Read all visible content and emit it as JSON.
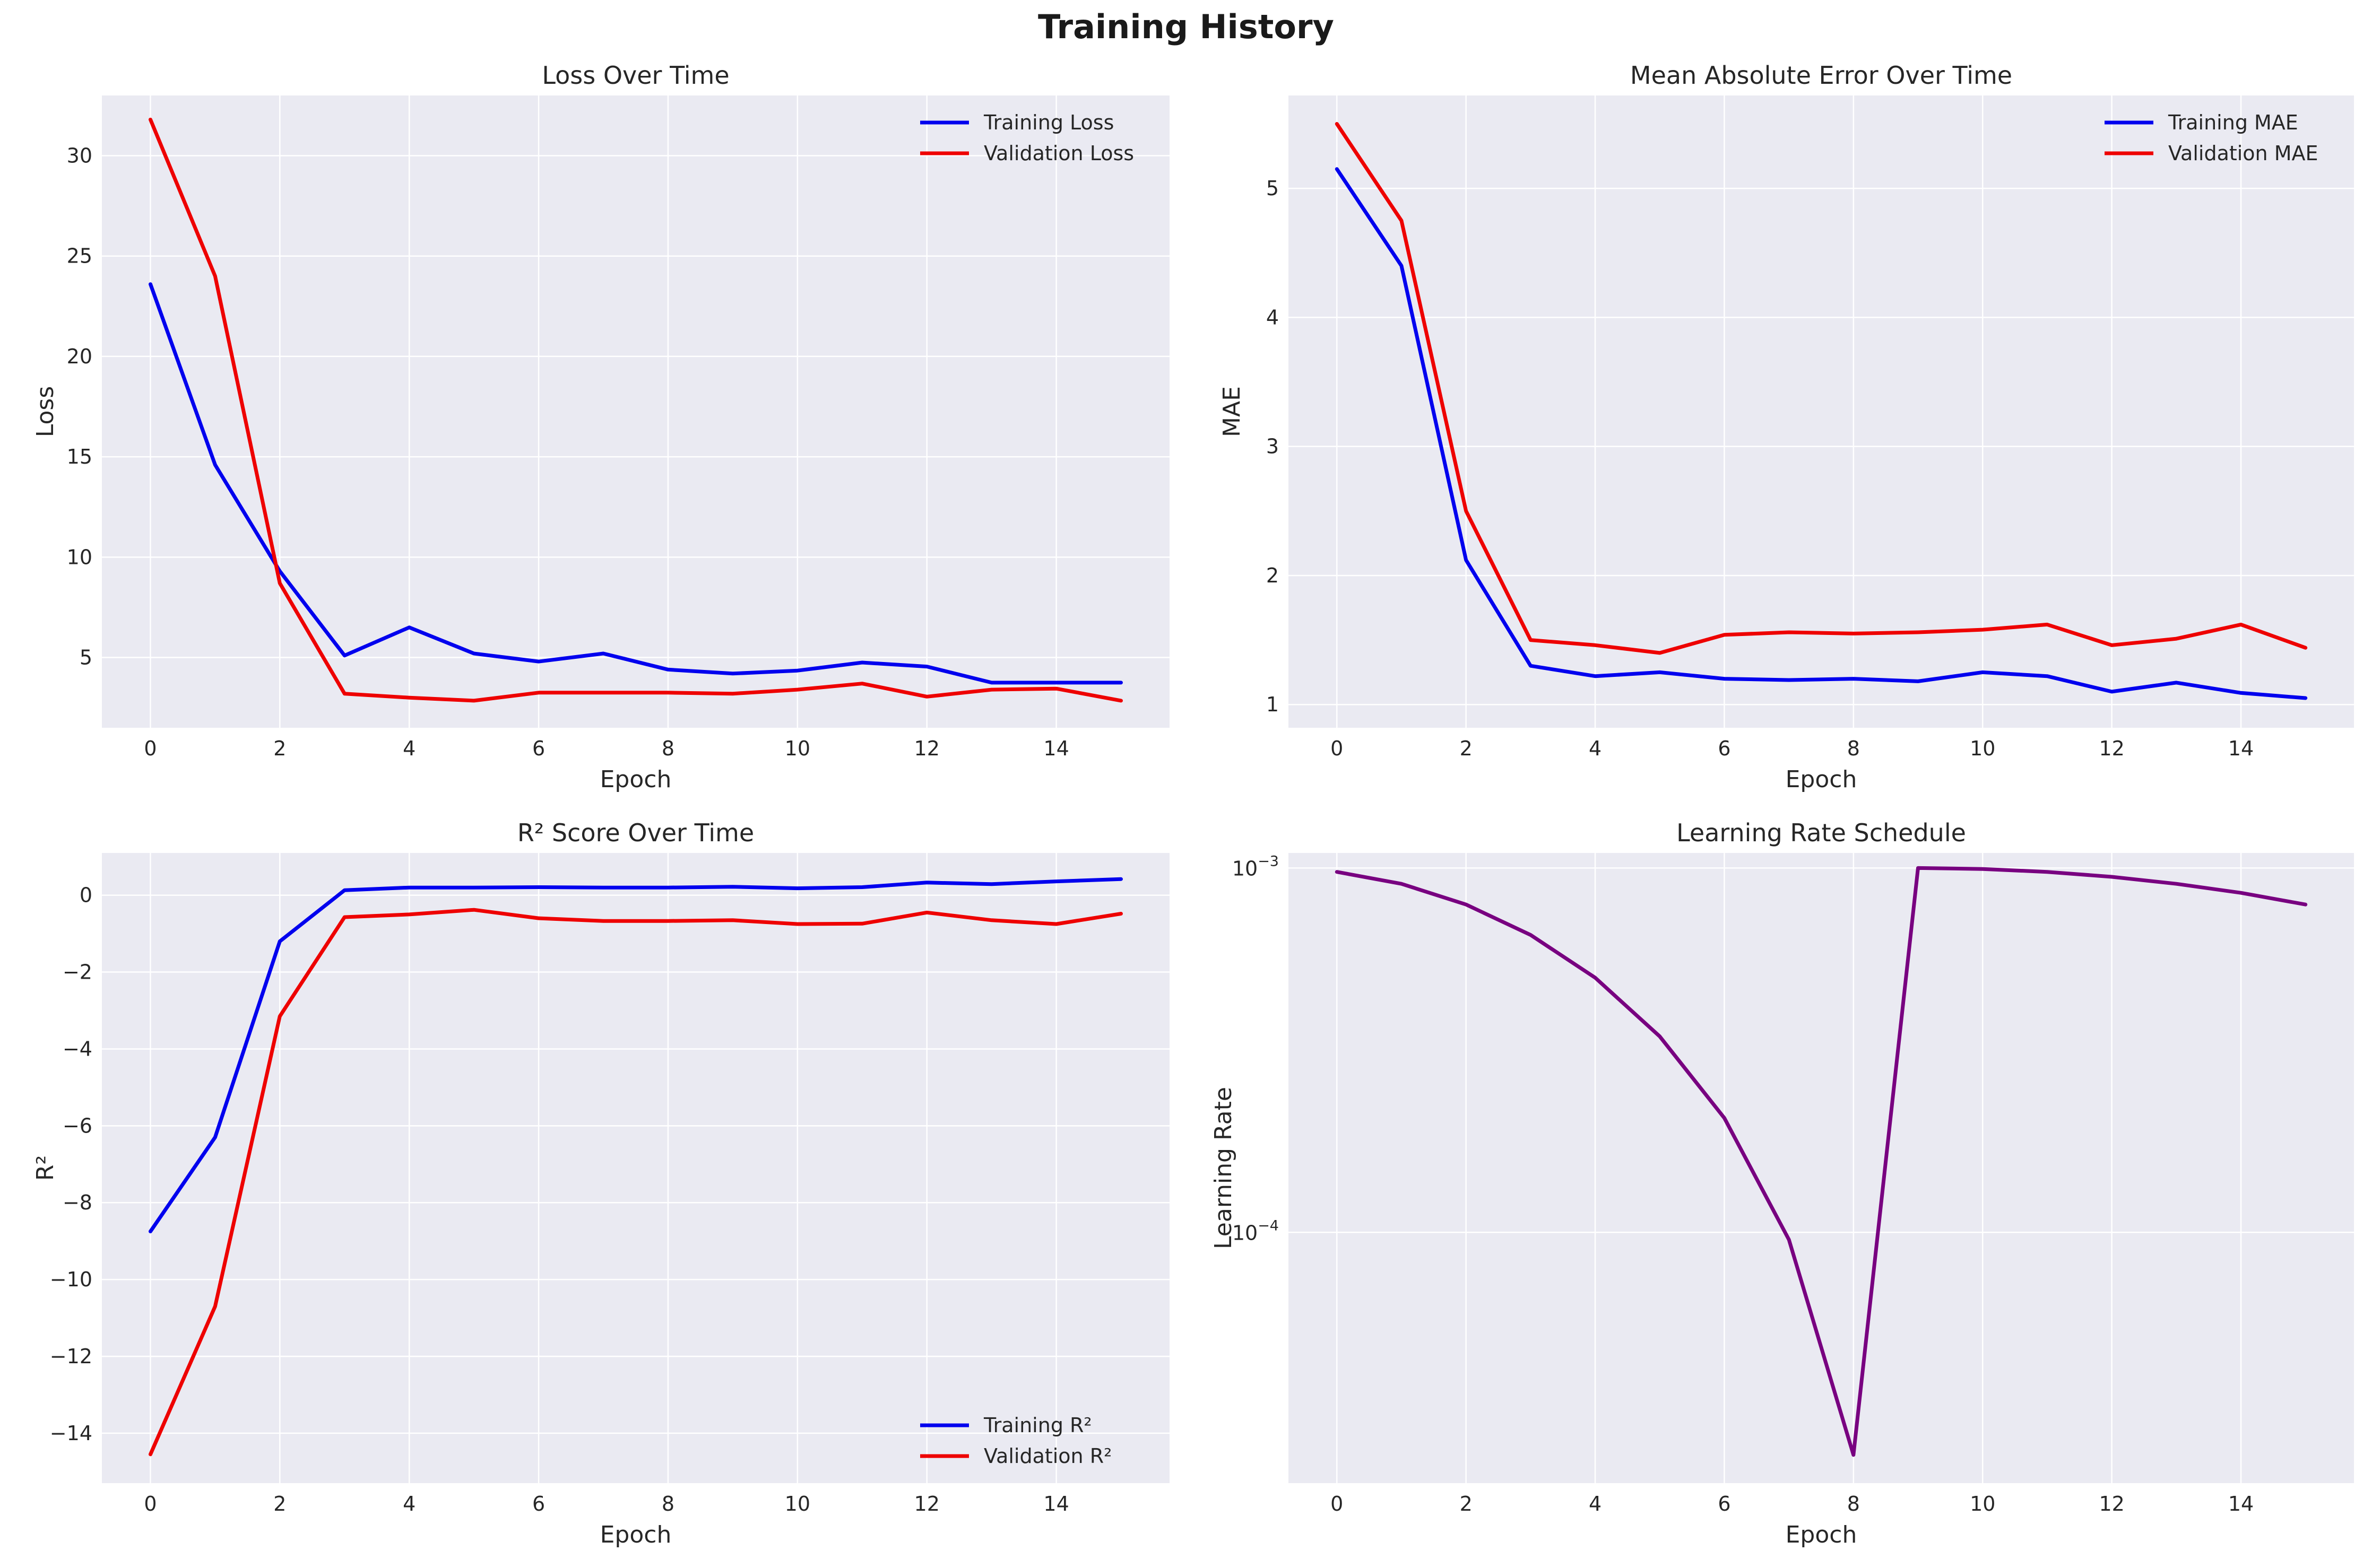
{
  "figure": {
    "title": "Training History"
  },
  "colors": {
    "training": "#0000ee",
    "validation": "#ee0000",
    "lr": "#780080",
    "panel_bg": "#eaeaf2",
    "grid": "#ffffff"
  },
  "chart_data": [
    {
      "type": "line",
      "title": "Loss Over Time",
      "xlabel": "Epoch",
      "ylabel": "Loss",
      "x": [
        0,
        1,
        2,
        3,
        4,
        5,
        6,
        7,
        8,
        9,
        10,
        11,
        12,
        13,
        14,
        15
      ],
      "xlim": [
        -0.75,
        15.75
      ],
      "ylim": [
        1.5,
        33.0
      ],
      "yscale": "linear",
      "xticks": [
        0,
        2,
        4,
        6,
        8,
        10,
        12,
        14
      ],
      "yticks": [
        5,
        10,
        15,
        20,
        25,
        30
      ],
      "legend_loc": "upper right",
      "series": [
        {
          "name": "Training Loss",
          "color": "#0000ee",
          "values": [
            23.6,
            14.6,
            9.3,
            5.1,
            6.5,
            5.2,
            4.8,
            5.2,
            4.4,
            4.2,
            4.35,
            4.75,
            4.55,
            3.75,
            3.75,
            3.75
          ]
        },
        {
          "name": "Validation Loss",
          "color": "#ee0000",
          "values": [
            31.8,
            24.0,
            8.7,
            3.2,
            3.0,
            2.85,
            3.25,
            3.25,
            3.25,
            3.2,
            3.4,
            3.7,
            3.05,
            3.4,
            3.45,
            2.85
          ]
        }
      ]
    },
    {
      "type": "line",
      "title": "Mean Absolute Error Over Time",
      "xlabel": "Epoch",
      "ylabel": "MAE",
      "x": [
        0,
        1,
        2,
        3,
        4,
        5,
        6,
        7,
        8,
        9,
        10,
        11,
        12,
        13,
        14,
        15
      ],
      "xlim": [
        -0.75,
        15.75
      ],
      "ylim": [
        0.82,
        5.72
      ],
      "yscale": "linear",
      "xticks": [
        0,
        2,
        4,
        6,
        8,
        10,
        12,
        14
      ],
      "yticks": [
        1,
        2,
        3,
        4,
        5
      ],
      "legend_loc": "upper right",
      "series": [
        {
          "name": "Training MAE",
          "color": "#0000ee",
          "values": [
            5.15,
            4.4,
            2.12,
            1.3,
            1.22,
            1.25,
            1.2,
            1.19,
            1.2,
            1.18,
            1.25,
            1.22,
            1.1,
            1.17,
            1.09,
            1.05
          ]
        },
        {
          "name": "Validation MAE",
          "color": "#ee0000",
          "values": [
            5.5,
            4.75,
            2.5,
            1.5,
            1.46,
            1.4,
            1.54,
            1.56,
            1.55,
            1.56,
            1.58,
            1.62,
            1.46,
            1.51,
            1.62,
            1.44
          ]
        }
      ]
    },
    {
      "type": "line",
      "title": "R² Score Over Time",
      "xlabel": "Epoch",
      "ylabel": "R²",
      "x": [
        0,
        1,
        2,
        3,
        4,
        5,
        6,
        7,
        8,
        9,
        10,
        11,
        12,
        13,
        14,
        15
      ],
      "xlim": [
        -0.75,
        15.75
      ],
      "ylim": [
        -15.3,
        1.1
      ],
      "yscale": "linear",
      "xticks": [
        0,
        2,
        4,
        6,
        8,
        10,
        12,
        14
      ],
      "yticks": [
        0,
        -2,
        -4,
        -6,
        -8,
        -10,
        -12,
        -14
      ],
      "ytick_labels": [
        "0",
        "−2",
        "−4",
        "−6",
        "−8",
        "−10",
        "−12",
        "−14"
      ],
      "legend_loc": "lower right",
      "series": [
        {
          "name": "Training R²",
          "color": "#0000ee",
          "values": [
            -8.75,
            -6.3,
            -1.2,
            0.13,
            0.2,
            0.2,
            0.21,
            0.2,
            0.2,
            0.22,
            0.18,
            0.21,
            0.33,
            0.29,
            0.36,
            0.42
          ]
        },
        {
          "name": "Validation R²",
          "color": "#ee0000",
          "values": [
            -14.55,
            -10.7,
            -3.15,
            -0.57,
            -0.5,
            -0.38,
            -0.6,
            -0.67,
            -0.67,
            -0.65,
            -0.75,
            -0.74,
            -0.45,
            -0.65,
            -0.75,
            -0.48
          ]
        }
      ]
    },
    {
      "type": "line",
      "title": "Learning Rate Schedule",
      "xlabel": "Epoch",
      "ylabel": "Learning Rate",
      "x": [
        0,
        1,
        2,
        3,
        4,
        5,
        6,
        7,
        8,
        9,
        10,
        11,
        12,
        13,
        14,
        15
      ],
      "xlim": [
        -0.75,
        15.75
      ],
      "ylim": [
        2.05e-05,
        0.0011
      ],
      "yscale": "log",
      "xticks": [
        0,
        2,
        4,
        6,
        8,
        10,
        12,
        14
      ],
      "yticks": [
        0.001,
        0.0001
      ],
      "ytick_labels": [
        {
          "base": "10",
          "exp": "−3"
        },
        {
          "base": "10",
          "exp": "−4"
        }
      ],
      "legend_loc": "none",
      "series": [
        {
          "name": "Learning Rate",
          "color": "#780080",
          "values": [
            0.000976,
            0.000905,
            0.000794,
            0.000655,
            0.0005,
            0.000345,
            0.000206,
            9.55e-05,
            2.45e-05,
            0.001,
            0.000994,
            0.000976,
            0.000946,
            0.000905,
            0.000855,
            0.000794
          ]
        }
      ]
    }
  ]
}
